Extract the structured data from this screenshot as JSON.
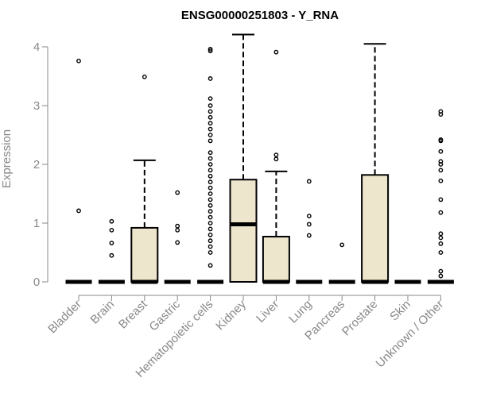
{
  "chart_data": {
    "type": "boxplot",
    "title": "ENSG00000251803 - Y_RNA",
    "xlabel": "",
    "ylabel": "Expression",
    "ylim": [
      0,
      4.2
    ],
    "yticks": [
      0,
      1,
      2,
      3,
      4
    ],
    "box_color": "#ede5cc",
    "categories": [
      "Bladder",
      "Brain",
      "Breast",
      "Gastric",
      "Hematopoietic cells",
      "Kidney",
      "Liver",
      "Lung",
      "Pancreas",
      "Prostate",
      "Skin",
      "Unknown / Other"
    ],
    "boxes": [
      {
        "min": 0,
        "q1": 0,
        "median": 0,
        "q3": 0,
        "max": 0,
        "outliers": [
          1.21,
          3.76
        ]
      },
      {
        "min": 0,
        "q1": 0,
        "median": 0,
        "q3": 0,
        "max": 0,
        "outliers": [
          0.45,
          0.66,
          0.88,
          1.03
        ]
      },
      {
        "min": 0,
        "q1": 0,
        "median": 0,
        "q3": 0.92,
        "max": 2.07,
        "outliers": [
          3.49
        ]
      },
      {
        "min": 0,
        "q1": 0,
        "median": 0,
        "q3": 0,
        "max": 0,
        "outliers": [
          0.67,
          0.88,
          0.95,
          1.52
        ]
      },
      {
        "min": 0,
        "q1": 0,
        "median": 0,
        "q3": 0,
        "max": 0,
        "outliers": [
          0.28,
          0.5,
          0.6,
          0.7,
          0.8,
          0.9,
          1.0,
          1.1,
          1.2,
          1.3,
          1.4,
          1.5,
          1.6,
          1.7,
          1.8,
          1.9,
          2.0,
          2.1,
          2.2,
          2.4,
          2.5,
          2.6,
          2.7,
          2.8,
          2.9,
          3.0,
          3.12,
          3.46,
          3.93,
          3.96
        ]
      },
      {
        "min": 0,
        "q1": 0,
        "median": 0.98,
        "q3": 1.74,
        "max": 4.21,
        "outliers": []
      },
      {
        "min": 0,
        "q1": 0,
        "median": 0,
        "q3": 0.77,
        "max": 1.88,
        "outliers": [
          2.09,
          2.16,
          3.91
        ]
      },
      {
        "min": 0,
        "q1": 0,
        "median": 0,
        "q3": 0,
        "max": 0,
        "outliers": [
          0.79,
          0.98,
          1.12,
          1.71
        ]
      },
      {
        "min": 0,
        "q1": 0,
        "median": 0,
        "q3": 0,
        "max": 0,
        "outliers": [
          0.63
        ]
      },
      {
        "min": 0,
        "q1": 0,
        "median": 0,
        "q3": 1.82,
        "max": 4.05,
        "outliers": []
      },
      {
        "min": 0,
        "q1": 0,
        "median": 0,
        "q3": 0,
        "max": 0,
        "outliers": []
      },
      {
        "min": 0,
        "q1": 0,
        "median": 0,
        "q3": 0,
        "max": 0,
        "outliers": [
          0.1,
          0.18,
          0.5,
          0.65,
          0.75,
          0.82,
          1.18,
          1.4,
          1.72,
          1.9,
          2.0,
          2.05,
          2.22,
          2.4,
          2.42,
          2.85,
          2.9
        ]
      }
    ]
  }
}
